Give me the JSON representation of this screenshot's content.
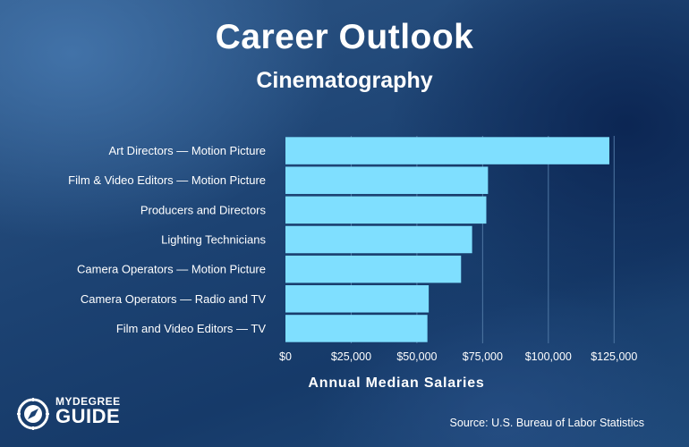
{
  "header": {
    "title": "Career Outlook",
    "subtitle": "Cinematography"
  },
  "logo": {
    "line1": "MYDEGREE",
    "line2": "GUIDE"
  },
  "source": "Source: U.S. Bureau of Labor Statistics",
  "colors": {
    "bar": "#7fdfff",
    "gridline": "#4f77a3"
  },
  "chart_data": {
    "type": "bar",
    "orientation": "horizontal",
    "title": "Career Outlook",
    "subtitle": "Cinematography",
    "xlabel": "Annual Median Salaries",
    "ylabel": "",
    "xlim": [
      0,
      137500
    ],
    "grid": true,
    "categories": [
      "Art Directors — Motion Picture",
      "Film & Video Editors — Motion Picture",
      "Producers and Directors",
      "Lighting Technicians",
      "Camera Operators — Motion Picture",
      "Camera Operators — Radio and TV",
      "Film and Video Editors — TV"
    ],
    "values": [
      123200,
      77040,
      76400,
      71000,
      66800,
      54500,
      54000
    ],
    "ticks": [
      {
        "value": 0,
        "label": "$0"
      },
      {
        "value": 25000,
        "label": "$25,000"
      },
      {
        "value": 50000,
        "label": "$50,000"
      },
      {
        "value": 75000,
        "label": "$75,000"
      },
      {
        "value": 100000,
        "label": "$100,000"
      },
      {
        "value": 125000,
        "label": "$125,000"
      }
    ]
  }
}
